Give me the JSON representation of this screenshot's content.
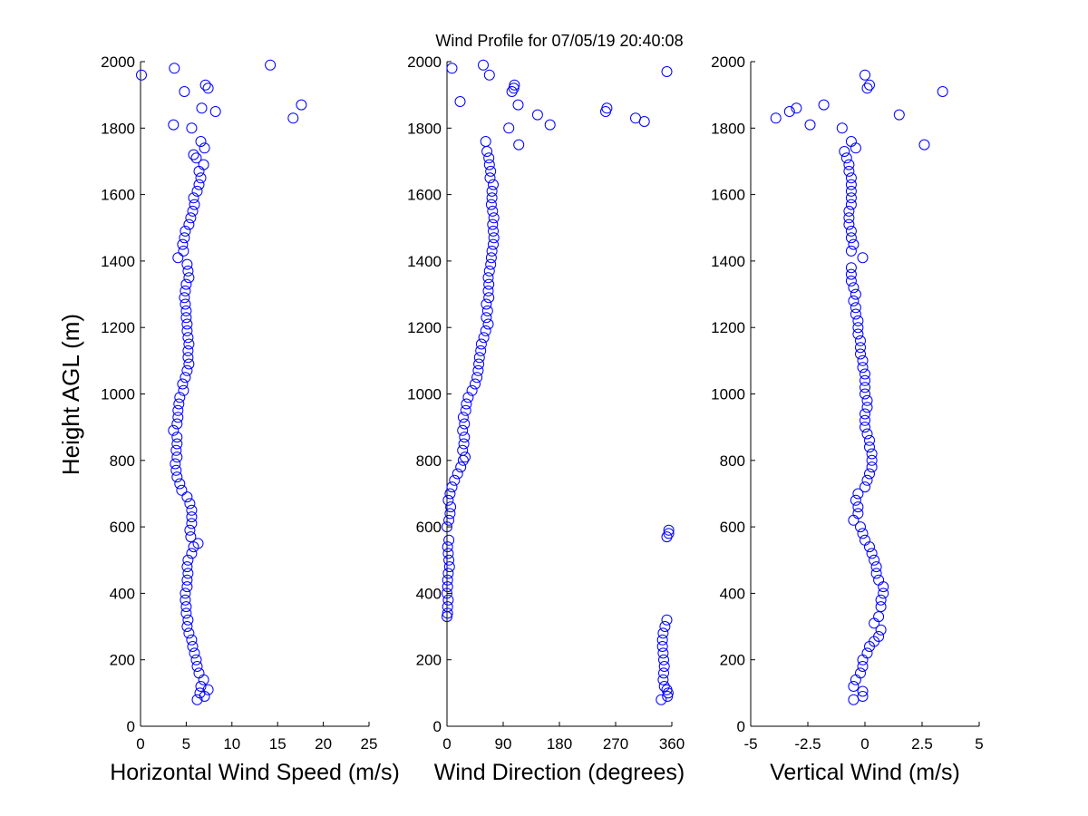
{
  "figure": {
    "title": "Wind Profile for  07/05/19 20:40:08"
  },
  "chart_data": [
    {
      "type": "scatter",
      "xlabel": "Horizontal Wind Speed (m/s)",
      "ylabel": "Height AGL (m)",
      "xlim": [
        0,
        25
      ],
      "ylim": [
        0,
        2000
      ],
      "xticks": [
        "0",
        "5",
        "10",
        "15",
        "20",
        "25"
      ],
      "yticks": [
        "0",
        "200",
        "400",
        "600",
        "800",
        "1000",
        "1200",
        "1400",
        "1600",
        "1800",
        "2000"
      ],
      "marker": "open-circle",
      "color": "#0000ff",
      "points": [
        [
          6.2,
          80
        ],
        [
          7,
          90
        ],
        [
          6.5,
          100
        ],
        [
          7.4,
          110
        ],
        [
          6.6,
          120
        ],
        [
          6.9,
          140
        ],
        [
          6.4,
          160
        ],
        [
          6.2,
          180
        ],
        [
          6.1,
          200
        ],
        [
          5.9,
          220
        ],
        [
          5.7,
          240
        ],
        [
          5.6,
          260
        ],
        [
          5.3,
          280
        ],
        [
          5.1,
          300
        ],
        [
          5.2,
          320
        ],
        [
          5,
          340
        ],
        [
          5,
          360
        ],
        [
          4.9,
          380
        ],
        [
          4.9,
          400
        ],
        [
          5.1,
          420
        ],
        [
          5.1,
          440
        ],
        [
          5.2,
          460
        ],
        [
          5.1,
          480
        ],
        [
          5.2,
          500
        ],
        [
          5.6,
          520
        ],
        [
          5.8,
          540
        ],
        [
          6.3,
          550
        ],
        [
          5.5,
          570
        ],
        [
          5.4,
          590
        ],
        [
          5.6,
          610
        ],
        [
          5.6,
          630
        ],
        [
          5.6,
          650
        ],
        [
          5.4,
          670
        ],
        [
          5.1,
          690
        ],
        [
          4.5,
          710
        ],
        [
          4.3,
          730
        ],
        [
          4,
          750
        ],
        [
          3.9,
          770
        ],
        [
          3.8,
          790
        ],
        [
          4,
          810
        ],
        [
          3.9,
          830
        ],
        [
          4,
          850
        ],
        [
          4,
          870
        ],
        [
          3.6,
          890
        ],
        [
          4,
          910
        ],
        [
          4.1,
          930
        ],
        [
          4.1,
          950
        ],
        [
          4.2,
          970
        ],
        [
          4.3,
          990
        ],
        [
          4.7,
          1010
        ],
        [
          4.6,
          1030
        ],
        [
          4.9,
          1050
        ],
        [
          5.1,
          1070
        ],
        [
          5.3,
          1090
        ],
        [
          5.2,
          1110
        ],
        [
          5.2,
          1130
        ],
        [
          5.3,
          1150
        ],
        [
          5.2,
          1170
        ],
        [
          5.1,
          1190
        ],
        [
          5.1,
          1210
        ],
        [
          5,
          1230
        ],
        [
          5,
          1250
        ],
        [
          4.9,
          1270
        ],
        [
          4.8,
          1290
        ],
        [
          4.9,
          1310
        ],
        [
          5,
          1330
        ],
        [
          5.3,
          1350
        ],
        [
          5.2,
          1370
        ],
        [
          5.1,
          1390
        ],
        [
          4.1,
          1410
        ],
        [
          4.7,
          1430
        ],
        [
          4.6,
          1450
        ],
        [
          4.8,
          1470
        ],
        [
          4.9,
          1490
        ],
        [
          5.3,
          1510
        ],
        [
          5.5,
          1530
        ],
        [
          5.7,
          1550
        ],
        [
          5.9,
          1570
        ],
        [
          5.8,
          1590
        ],
        [
          6.2,
          1610
        ],
        [
          6.4,
          1630
        ],
        [
          6.6,
          1650
        ],
        [
          6.4,
          1670
        ],
        [
          6.9,
          1690
        ],
        [
          6.1,
          1710
        ],
        [
          7,
          1740
        ],
        [
          5.8,
          1720
        ],
        [
          6.6,
          1760
        ],
        [
          3.6,
          1810
        ],
        [
          5.6,
          1800
        ],
        [
          16.7,
          1830
        ],
        [
          8.2,
          1850
        ],
        [
          6.7,
          1860
        ],
        [
          17.6,
          1870
        ],
        [
          4.8,
          1910
        ],
        [
          7.4,
          1920
        ],
        [
          7.1,
          1930
        ],
        [
          3.7,
          1980
        ],
        [
          14.2,
          1990
        ],
        [
          0.1,
          1960
        ]
      ]
    },
    {
      "type": "scatter",
      "xlabel": "Wind Direction (degrees)",
      "xlim": [
        0,
        360
      ],
      "ylim": [
        0,
        2000
      ],
      "xticks": [
        "0",
        "90",
        "180",
        "270",
        "360"
      ],
      "yticks": [
        "0",
        "200",
        "400",
        "600",
        "800",
        "1000",
        "1200",
        "1400",
        "1600",
        "1800",
        "2000"
      ],
      "marker": "open-circle",
      "color": "#0000ff",
      "points": [
        [
          343,
          80
        ],
        [
          353,
          90
        ],
        [
          354,
          100
        ],
        [
          352,
          110
        ],
        [
          348,
          120
        ],
        [
          346,
          140
        ],
        [
          347,
          160
        ],
        [
          348,
          180
        ],
        [
          347,
          200
        ],
        [
          346,
          220
        ],
        [
          345,
          240
        ],
        [
          345,
          260
        ],
        [
          346,
          280
        ],
        [
          349,
          300
        ],
        [
          352,
          320
        ],
        [
          0,
          330
        ],
        [
          1,
          340
        ],
        [
          1,
          360
        ],
        [
          2,
          380
        ],
        [
          0,
          400
        ],
        [
          1,
          420
        ],
        [
          1,
          440
        ],
        [
          2,
          460
        ],
        [
          4,
          480
        ],
        [
          3,
          500
        ],
        [
          2,
          520
        ],
        [
          1,
          540
        ],
        [
          3,
          560
        ],
        [
          352,
          570
        ],
        [
          355,
          580
        ],
        [
          355,
          590
        ],
        [
          0,
          600
        ],
        [
          3,
          620
        ],
        [
          5,
          640
        ],
        [
          6,
          660
        ],
        [
          2,
          680
        ],
        [
          5,
          700
        ],
        [
          8,
          720
        ],
        [
          12,
          740
        ],
        [
          17,
          760
        ],
        [
          22,
          780
        ],
        [
          26,
          800
        ],
        [
          29,
          810
        ],
        [
          25,
          830
        ],
        [
          27,
          850
        ],
        [
          28,
          870
        ],
        [
          25,
          890
        ],
        [
          28,
          910
        ],
        [
          26,
          930
        ],
        [
          30,
          950
        ],
        [
          31,
          970
        ],
        [
          34,
          990
        ],
        [
          40,
          1010
        ],
        [
          45,
          1030
        ],
        [
          48,
          1050
        ],
        [
          50,
          1070
        ],
        [
          51,
          1090
        ],
        [
          52,
          1110
        ],
        [
          54,
          1130
        ],
        [
          55,
          1150
        ],
        [
          59,
          1170
        ],
        [
          62,
          1190
        ],
        [
          66,
          1210
        ],
        [
          63,
          1230
        ],
        [
          65,
          1250
        ],
        [
          63,
          1270
        ],
        [
          67,
          1290
        ],
        [
          66,
          1310
        ],
        [
          67,
          1330
        ],
        [
          66,
          1350
        ],
        [
          68,
          1370
        ],
        [
          70,
          1390
        ],
        [
          71,
          1410
        ],
        [
          72,
          1430
        ],
        [
          74,
          1450
        ],
        [
          75,
          1470
        ],
        [
          74,
          1490
        ],
        [
          73,
          1510
        ],
        [
          75,
          1530
        ],
        [
          73,
          1550
        ],
        [
          71,
          1570
        ],
        [
          72,
          1590
        ],
        [
          72,
          1610
        ],
        [
          74,
          1630
        ],
        [
          69,
          1650
        ],
        [
          70,
          1670
        ],
        [
          68,
          1690
        ],
        [
          67,
          1710
        ],
        [
          64,
          1730
        ],
        [
          62,
          1760
        ],
        [
          99,
          1800
        ],
        [
          115,
          1750
        ],
        [
          165,
          1810
        ],
        [
          145,
          1840
        ],
        [
          316,
          1820
        ],
        [
          302,
          1830
        ],
        [
          254,
          1850
        ],
        [
          256,
          1860
        ],
        [
          114,
          1870
        ],
        [
          21,
          1880
        ],
        [
          104,
          1910
        ],
        [
          107,
          1920
        ],
        [
          108,
          1930
        ],
        [
          68,
          1960
        ],
        [
          352,
          1970
        ],
        [
          8,
          1980
        ],
        [
          58,
          1990
        ]
      ]
    },
    {
      "type": "scatter",
      "xlabel": "Vertical Wind (m/s)",
      "xlim": [
        -5,
        5
      ],
      "ylim": [
        0,
        2000
      ],
      "xticks": [
        "-5",
        "-2.5",
        "0",
        "2.5",
        "5"
      ],
      "yticks": [
        "0",
        "200",
        "400",
        "600",
        "800",
        "1000",
        "1200",
        "1400",
        "1600",
        "1800",
        "2000"
      ],
      "marker": "open-circle",
      "color": "#0000ff",
      "points": [
        [
          -0.5,
          80
        ],
        [
          -0.1,
          90
        ],
        [
          -0.1,
          105
        ],
        [
          -0.5,
          120
        ],
        [
          -0.4,
          140
        ],
        [
          -0.2,
          160
        ],
        [
          -0.1,
          180
        ],
        [
          -0.1,
          200
        ],
        [
          0.1,
          220
        ],
        [
          0.2,
          240
        ],
        [
          0.4,
          255
        ],
        [
          0.6,
          270
        ],
        [
          0.7,
          290
        ],
        [
          0.4,
          310
        ],
        [
          0.6,
          330
        ],
        [
          0.7,
          360
        ],
        [
          0.7,
          380
        ],
        [
          0.8,
          400
        ],
        [
          0.8,
          420
        ],
        [
          0.6,
          440
        ],
        [
          0.5,
          460
        ],
        [
          0.5,
          480
        ],
        [
          0.4,
          500
        ],
        [
          0.3,
          520
        ],
        [
          0.2,
          540
        ],
        [
          0,
          560
        ],
        [
          -0.1,
          580
        ],
        [
          -0.2,
          600
        ],
        [
          -0.5,
          620
        ],
        [
          -0.3,
          640
        ],
        [
          -0.3,
          660
        ],
        [
          -0.4,
          680
        ],
        [
          -0.3,
          700
        ],
        [
          0,
          720
        ],
        [
          0.1,
          740
        ],
        [
          0.2,
          760
        ],
        [
          0.3,
          780
        ],
        [
          0.3,
          800
        ],
        [
          0.3,
          820
        ],
        [
          0.2,
          840
        ],
        [
          0.2,
          860
        ],
        [
          0.1,
          880
        ],
        [
          0,
          900
        ],
        [
          0,
          920
        ],
        [
          0,
          940
        ],
        [
          0.1,
          960
        ],
        [
          0.1,
          980
        ],
        [
          0,
          1000
        ],
        [
          0,
          1020
        ],
        [
          0,
          1040
        ],
        [
          0,
          1060
        ],
        [
          -0.1,
          1080
        ],
        [
          -0.1,
          1100
        ],
        [
          -0.2,
          1120
        ],
        [
          -0.2,
          1140
        ],
        [
          -0.2,
          1160
        ],
        [
          -0.3,
          1180
        ],
        [
          -0.3,
          1200
        ],
        [
          -0.3,
          1220
        ],
        [
          -0.4,
          1240
        ],
        [
          -0.4,
          1260
        ],
        [
          -0.5,
          1280
        ],
        [
          -0.4,
          1300
        ],
        [
          -0.5,
          1320
        ],
        [
          -0.6,
          1340
        ],
        [
          -0.6,
          1360
        ],
        [
          -0.6,
          1380
        ],
        [
          -0.1,
          1410
        ],
        [
          -0.6,
          1430
        ],
        [
          -0.5,
          1450
        ],
        [
          -0.6,
          1470
        ],
        [
          -0.6,
          1490
        ],
        [
          -0.7,
          1510
        ],
        [
          -0.7,
          1530
        ],
        [
          -0.7,
          1550
        ],
        [
          -0.6,
          1570
        ],
        [
          -0.6,
          1590
        ],
        [
          -0.6,
          1610
        ],
        [
          -0.6,
          1630
        ],
        [
          -0.6,
          1650
        ],
        [
          -0.7,
          1670
        ],
        [
          -0.7,
          1690
        ],
        [
          -0.8,
          1710
        ],
        [
          -0.9,
          1730
        ],
        [
          -0.6,
          1760
        ],
        [
          -0.4,
          1740
        ],
        [
          -1,
          1800
        ],
        [
          -3.9,
          1830
        ],
        [
          -2.4,
          1810
        ],
        [
          -3.3,
          1850
        ],
        [
          -3,
          1860
        ],
        [
          -1.8,
          1870
        ],
        [
          1.5,
          1840
        ],
        [
          2.6,
          1750
        ],
        [
          3.4,
          1910
        ],
        [
          0.1,
          1920
        ],
        [
          0.2,
          1930
        ],
        [
          0,
          1960
        ]
      ]
    }
  ]
}
